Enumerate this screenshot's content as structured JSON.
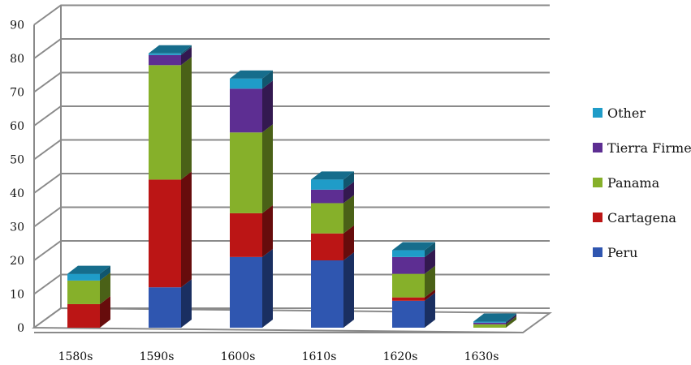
{
  "chart_data": {
    "type": "bar",
    "stacked": true,
    "style": "3d",
    "title": "",
    "xlabel": "",
    "ylabel": "",
    "ylim": [
      0,
      90
    ],
    "yticks": [
      0,
      10,
      20,
      30,
      40,
      50,
      60,
      70,
      80,
      90
    ],
    "grid": true,
    "legend_position": "right",
    "categories": [
      "1580s",
      "1590s",
      "1600s",
      "1610s",
      "1620s",
      "1630s"
    ],
    "series": [
      {
        "name": "Peru",
        "color": "#2f56b0",
        "values": [
          0,
          12,
          21,
          20,
          8,
          0
        ]
      },
      {
        "name": "Cartagena",
        "color": "#bb1515",
        "values": [
          7,
          32,
          13,
          8,
          1,
          0
        ]
      },
      {
        "name": "Panama",
        "color": "#86b02a",
        "values": [
          7,
          34,
          24,
          9,
          7,
          1
        ]
      },
      {
        "name": "Tierra Firme",
        "color": "#5d2e92",
        "values": [
          0,
          3,
          13,
          4,
          5,
          0.5
        ]
      },
      {
        "name": "Other",
        "color": "#1f9cc8",
        "values": [
          2,
          0.5,
          3,
          3,
          2,
          0.3
        ]
      }
    ]
  }
}
